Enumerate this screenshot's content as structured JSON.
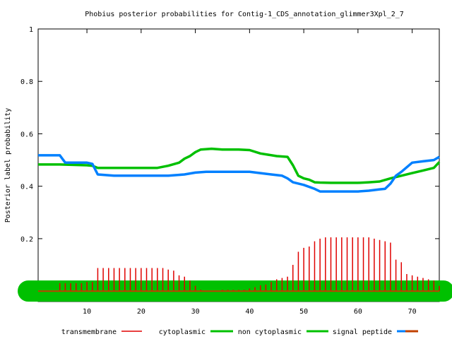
{
  "chart_data": {
    "type": "line",
    "title": "Phobius posterior probabilities for Contig-1_CDS_annotation_glimmer3Xpl_2_7",
    "xlabel": "",
    "ylabel": "Posterior label probability",
    "xlim": [
      1,
      75
    ],
    "ylim": [
      -0.04,
      1
    ],
    "x_ticks": [
      10,
      20,
      30,
      40,
      50,
      60,
      70
    ],
    "y_ticks": [
      0.2,
      0.4,
      0.6,
      0.8,
      1
    ],
    "y_tick_labels": [
      "0.2",
      "0.4",
      "0.6",
      "0.8",
      "1"
    ],
    "grid": false,
    "legend_position": "bottom",
    "series": [
      {
        "name": "transmembrane",
        "style": "impulses",
        "color": "#e00000",
        "x": [
          1,
          2,
          3,
          4,
          5,
          6,
          7,
          8,
          9,
          10,
          11,
          12,
          13,
          14,
          15,
          16,
          17,
          18,
          19,
          20,
          21,
          22,
          23,
          24,
          25,
          26,
          27,
          28,
          29,
          30,
          31,
          32,
          33,
          34,
          35,
          36,
          37,
          38,
          39,
          40,
          41,
          42,
          43,
          44,
          45,
          46,
          47,
          48,
          49,
          50,
          51,
          52,
          53,
          54,
          55,
          56,
          57,
          58,
          59,
          60,
          61,
          62,
          63,
          64,
          65,
          66,
          67,
          68,
          69,
          70,
          71,
          72,
          73,
          74,
          75
        ],
        "y": [
          0,
          0,
          0,
          0,
          0.03,
          0.03,
          0.03,
          0.03,
          0.03,
          0.035,
          0.035,
          0.088,
          0.088,
          0.088,
          0.088,
          0.088,
          0.088,
          0.088,
          0.088,
          0.088,
          0.088,
          0.088,
          0.088,
          0.088,
          0.082,
          0.078,
          0.06,
          0.055,
          0.04,
          0.02,
          0.005,
          0,
          0,
          0,
          0.005,
          0.005,
          0.005,
          0.005,
          0.005,
          0.01,
          0.015,
          0.022,
          0.025,
          0.035,
          0.045,
          0.05,
          0.055,
          0.1,
          0.15,
          0.165,
          0.17,
          0.19,
          0.2,
          0.205,
          0.205,
          0.205,
          0.205,
          0.205,
          0.205,
          0.205,
          0.205,
          0.205,
          0.2,
          0.195,
          0.19,
          0.185,
          0.12,
          0.11,
          0.065,
          0.06,
          0.055,
          0.05,
          0.045,
          0.04,
          0.02
        ]
      },
      {
        "name": "cytoplasmic",
        "style": "line",
        "color": "#00c000",
        "x": [
          1,
          75
        ],
        "y": [
          0,
          0
        ]
      },
      {
        "name": "non cytoplasmic",
        "style": "line",
        "color": "#00c000",
        "x": [
          1,
          5,
          10,
          11,
          12,
          15,
          20,
          23,
          25,
          27,
          28,
          29,
          30,
          31,
          33,
          35,
          38,
          40,
          42,
          45,
          47,
          48,
          49,
          50,
          51,
          52,
          53,
          55,
          58,
          60,
          62,
          64,
          66,
          68,
          70,
          72,
          74,
          75
        ],
        "y": [
          0.483,
          0.483,
          0.48,
          0.478,
          0.47,
          0.47,
          0.47,
          0.47,
          0.478,
          0.49,
          0.505,
          0.515,
          0.53,
          0.54,
          0.543,
          0.54,
          0.54,
          0.538,
          0.525,
          0.515,
          0.512,
          0.48,
          0.44,
          0.43,
          0.425,
          0.415,
          0.414,
          0.413,
          0.413,
          0.413,
          0.415,
          0.418,
          0.43,
          0.44,
          0.45,
          0.46,
          0.47,
          0.492
        ]
      },
      {
        "name": "signal peptide",
        "style": "line",
        "color": "#0080ff",
        "x": [
          1,
          5,
          6,
          8,
          10,
          11,
          12,
          15,
          20,
          25,
          28,
          30,
          32,
          35,
          40,
          42,
          44,
          46,
          47,
          48,
          50,
          52,
          53,
          55,
          58,
          60,
          62,
          64,
          65,
          66,
          67,
          68,
          70,
          72,
          74,
          75
        ],
        "y": [
          0.518,
          0.518,
          0.49,
          0.49,
          0.49,
          0.485,
          0.445,
          0.44,
          0.44,
          0.44,
          0.445,
          0.452,
          0.455,
          0.455,
          0.455,
          0.45,
          0.445,
          0.44,
          0.43,
          0.415,
          0.405,
          0.39,
          0.38,
          0.38,
          0.38,
          0.38,
          0.383,
          0.388,
          0.39,
          0.41,
          0.44,
          0.455,
          0.49,
          0.495,
          0.5,
          0.512
        ]
      },
      {
        "name": "signal peptide",
        "style": "line",
        "color": "#c04000",
        "x": [
          1,
          75
        ],
        "y": [
          0,
          0
        ]
      }
    ]
  },
  "legend": [
    {
      "label": "transmembrane",
      "color": "#e00000"
    },
    {
      "label": "cytoplasmic",
      "color": "#00c000"
    },
    {
      "label": "non cytoplasmic",
      "color": "#00c000"
    },
    {
      "label": "signal peptide",
      "color": "#0080ff"
    },
    {
      "label": "",
      "color": "#c04000"
    }
  ]
}
